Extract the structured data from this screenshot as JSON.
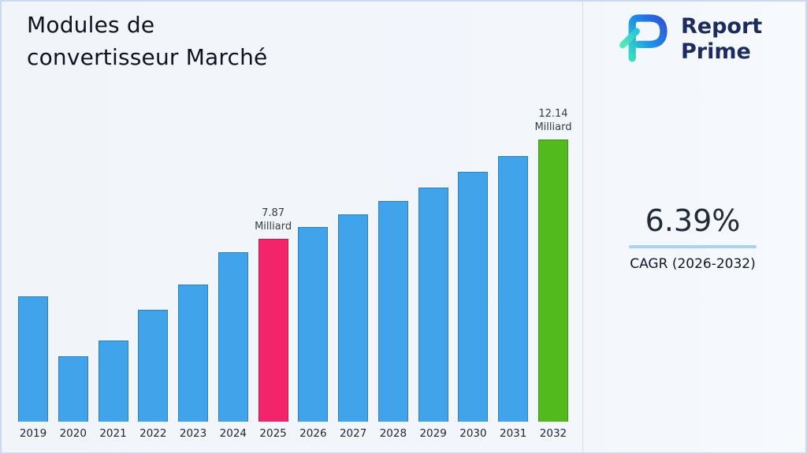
{
  "header": {
    "title": "Modules de\nconvertisseur Marché"
  },
  "logo": {
    "line1": "Report",
    "line2": "Prime"
  },
  "stats": {
    "cagr_value": "6.39%",
    "cagr_label": "CAGR (2026-2032)"
  },
  "colors": {
    "bar_default": "#41a3ea",
    "bar_2025": "#f2256b",
    "bar_2032": "#52ba1c",
    "accent_underline": "#a9d3f4"
  },
  "chart_data": {
    "type": "bar",
    "title": "Modules de convertisseur Marché",
    "xlabel": "",
    "ylabel": "",
    "unit": "Milliard",
    "categories": [
      "2019",
      "2020",
      "2021",
      "2022",
      "2023",
      "2024",
      "2025",
      "2026",
      "2027",
      "2028",
      "2029",
      "2030",
      "2031",
      "2032"
    ],
    "values": [
      5.4,
      2.8,
      3.5,
      4.8,
      5.9,
      7.3,
      7.87,
      8.37,
      8.91,
      9.48,
      10.08,
      10.73,
      11.41,
      12.14
    ],
    "ylim": [
      0,
      12.5
    ],
    "grid": false,
    "legend": false,
    "bar_color_default": "#41a3ea",
    "bar_colors": {
      "2025": "#f2256b",
      "2032": "#52ba1c"
    },
    "annotations": [
      {
        "category": "2025",
        "text": "7.87\nMilliard"
      },
      {
        "category": "2032",
        "text": "12.14\nMilliard"
      }
    ]
  }
}
